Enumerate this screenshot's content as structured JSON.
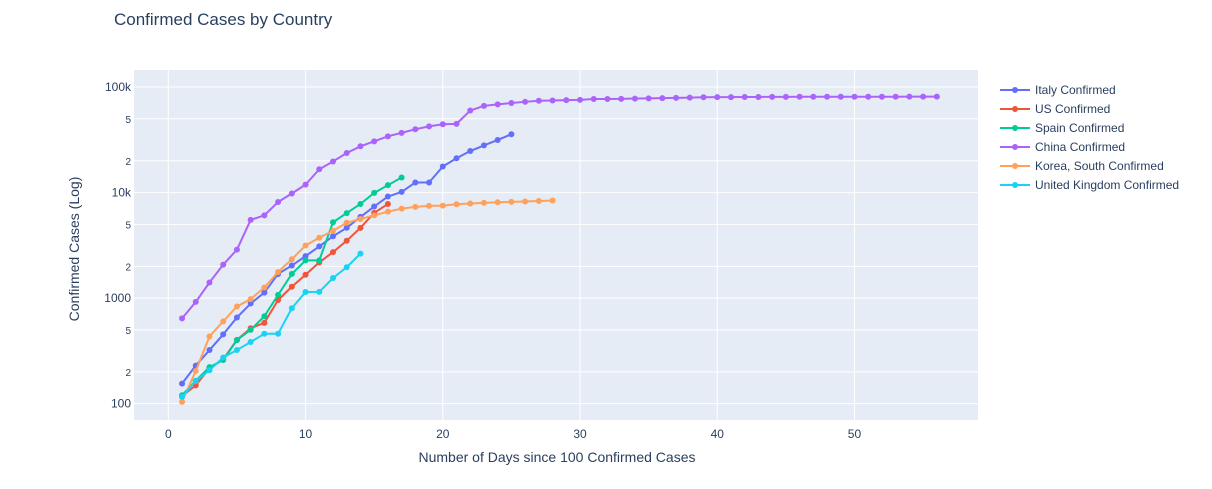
{
  "chart_data": {
    "type": "line",
    "title": "Confirmed Cases by Country",
    "xlabel": "Number of Days since 100 Confirmed Cases",
    "ylabel": "Confirmed Cases (Log)",
    "xlim": [
      -2.5,
      59
    ],
    "ylim": [
      70,
      145000
    ],
    "y_scale": "log",
    "grid": true,
    "legend_position": "right",
    "x_ticks": [
      0,
      10,
      20,
      30,
      40,
      50
    ],
    "x_tick_labels": [
      "0",
      "10",
      "20",
      "30",
      "40",
      "50"
    ],
    "y_major_ticks": [
      100,
      1000,
      10000,
      100000
    ],
    "y_major_tick_labels": [
      "100",
      "1000",
      "10k",
      "100k"
    ],
    "y_minor_ticks": [
      200,
      500,
      2000,
      5000,
      20000,
      50000
    ],
    "y_minor_tick_labels": [
      "2",
      "5",
      "2",
      "5",
      "2",
      "5"
    ],
    "series": [
      {
        "name": "Italy Confirmed",
        "color": "#636efa",
        "x": [
          1,
          2,
          3,
          4,
          5,
          6,
          7,
          8,
          9,
          10,
          11,
          12,
          13,
          14,
          15,
          16,
          17,
          18,
          19,
          20,
          21,
          22,
          23,
          24,
          25
        ],
        "y": [
          155,
          229,
          322,
          453,
          655,
          888,
          1128,
          1694,
          2036,
          2502,
          3089,
          3858,
          4636,
          5883,
          7375,
          9172,
          10149,
          12462,
          12462,
          17660,
          21157,
          24747,
          27980,
          31506,
          35713
        ]
      },
      {
        "name": "US Confirmed",
        "color": "#ef553b",
        "x": [
          1,
          2,
          3,
          4,
          5,
          6,
          7,
          8,
          9,
          10,
          11,
          12,
          13,
          14,
          15,
          16
        ],
        "y": [
          118,
          149,
          217,
          262,
          402,
          518,
          583,
          959,
          1281,
          1663,
          2179,
          2727,
          3499,
          4632,
          6421,
          7786
        ]
      },
      {
        "name": "Spain Confirmed",
        "color": "#00cc96",
        "x": [
          1,
          2,
          3,
          4,
          5,
          6,
          7,
          8,
          9,
          10,
          11,
          12,
          13,
          14,
          15,
          16,
          17
        ],
        "y": [
          120,
          165,
          222,
          259,
          400,
          500,
          673,
          1073,
          1695,
          2277,
          2277,
          5232,
          6391,
          7798,
          9942,
          11748,
          13910
        ]
      },
      {
        "name": "China Confirmed",
        "color": "#ab63fa",
        "x": [
          1,
          2,
          3,
          4,
          5,
          6,
          7,
          8,
          9,
          10,
          11,
          12,
          13,
          14,
          15,
          16,
          17,
          18,
          19,
          20,
          21,
          22,
          23,
          24,
          25,
          26,
          27,
          28,
          29,
          30,
          31,
          32,
          33,
          34,
          35,
          36,
          37,
          38,
          39,
          40,
          41,
          42,
          43,
          44,
          45,
          46,
          47,
          48,
          49,
          50,
          51,
          52,
          53,
          54,
          55,
          56
        ],
        "y": [
          643,
          920,
          1406,
          2075,
          2877,
          5509,
          6087,
          8141,
          9802,
          11891,
          16630,
          19716,
          23707,
          27440,
          30587,
          34110,
          36814,
          39829,
          42354,
          44386,
          44759,
          59895,
          66358,
          68413,
          70513,
          72434,
          74211,
          74619,
          75077,
          75550,
          77001,
          77022,
          77241,
          77754,
          78166,
          78600,
          78928,
          79356,
          79932,
          80136,
          80261,
          80386,
          80537,
          80690,
          80770,
          80823,
          80860,
          80887,
          80921,
          80932,
          80945,
          80977,
          81003,
          81033,
          81058,
          81102
        ]
      },
      {
        "name": "Korea, South Confirmed",
        "color": "#ffa15a",
        "x": [
          1,
          2,
          3,
          4,
          5,
          6,
          7,
          8,
          9,
          10,
          11,
          12,
          13,
          14,
          15,
          16,
          17,
          18,
          19,
          20,
          21,
          22,
          23,
          24,
          25,
          26,
          27,
          28
        ],
        "y": [
          104,
          204,
          433,
          602,
          833,
          977,
          1261,
          1766,
          2337,
          3150,
          3736,
          4335,
          5186,
          5621,
          6088,
          6593,
          7041,
          7314,
          7478,
          7513,
          7755,
          7869,
          7979,
          8086,
          8162,
          8236,
          8320,
          8413
        ]
      },
      {
        "name": "United Kingdom Confirmed",
        "color": "#19d3f3",
        "x": [
          1,
          2,
          3,
          4,
          5,
          6,
          7,
          8,
          9,
          10,
          11,
          12,
          13,
          14
        ],
        "y": [
          116,
          164,
          207,
          274,
          322,
          384,
          459,
          459,
          802,
          1144,
          1145,
          1551,
          1960,
          2642
        ]
      }
    ]
  }
}
